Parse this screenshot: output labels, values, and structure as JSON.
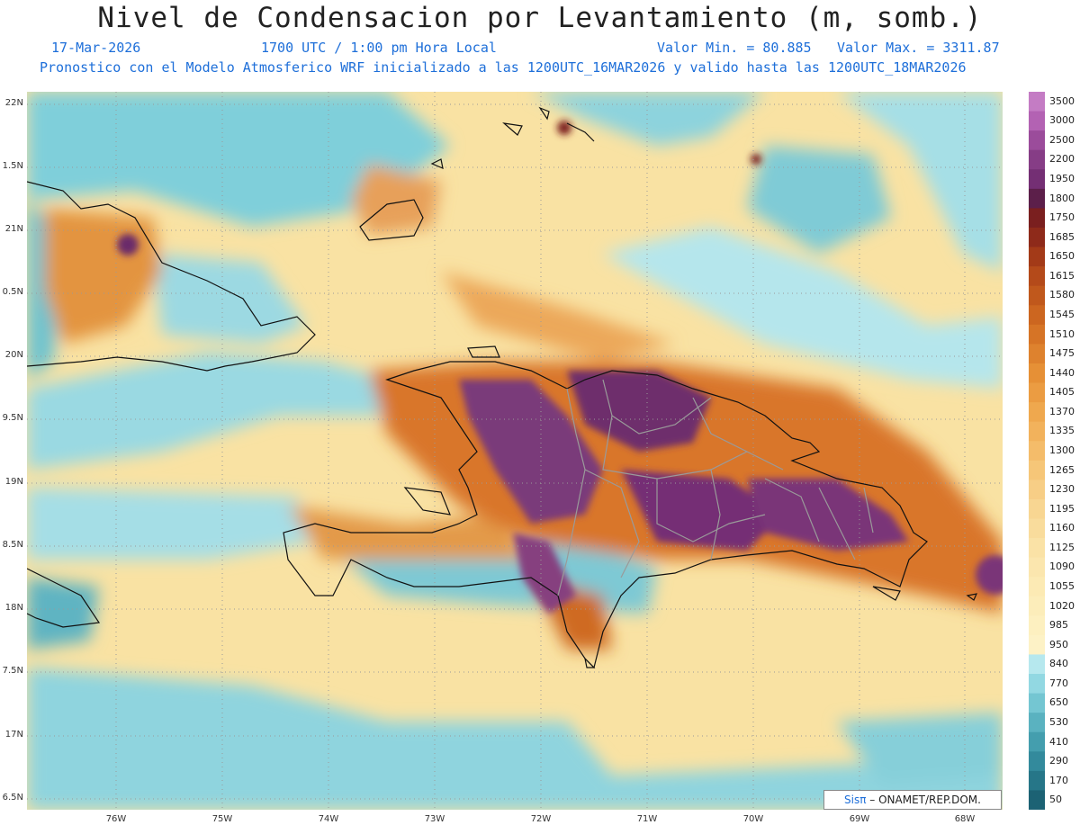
{
  "header": {
    "title": "Nivel de Condensacion por Levantamiento (m, somb.)",
    "date": "17-Mar-2026",
    "time": "1700 UTC / 1:00 pm Hora Local",
    "min_label": "Valor Min. = 80.885",
    "max_label": "Valor Max. = 3311.87",
    "model_info": "Pronostico con el Modelo Atmosferico WRF inicializado a las 1200UTC_16MAR2026 y valido hasta las  1200UTC_18MAR2026"
  },
  "axes": {
    "lat_labels": [
      "22N",
      "1.5N",
      "21N",
      "0.5N",
      "20N",
      "9.5N",
      "19N",
      "8.5N",
      "18N",
      "7.5N",
      "17N",
      "6.5N"
    ],
    "lon_labels": [
      "76W",
      "75W",
      "74W",
      "73W",
      "72W",
      "71W",
      "70W",
      "69W",
      "68W"
    ]
  },
  "legend": {
    "levels": [
      "3500",
      "3000",
      "2500",
      "2200",
      "1950",
      "1800",
      "1750",
      "1685",
      "1650",
      "1615",
      "1580",
      "1545",
      "1510",
      "1475",
      "1440",
      "1405",
      "1370",
      "1335",
      "1300",
      "1265",
      "1230",
      "1195",
      "1160",
      "1125",
      "1090",
      "1055",
      "1020",
      "985",
      "950",
      "840",
      "770",
      "650",
      "530",
      "410",
      "290",
      "170",
      "50"
    ],
    "colors": [
      "#c47cc4",
      "#b362b3",
      "#9b4c9b",
      "#863d86",
      "#742f74",
      "#5c1f4a",
      "#7a1f1f",
      "#8e2a1a",
      "#a33a18",
      "#b44a1a",
      "#c0581c",
      "#cc6620",
      "#d67426",
      "#de822e",
      "#e69036",
      "#eb9c42",
      "#efa84e",
      "#f2b25c",
      "#f4bc6a",
      "#f6c678",
      "#f7ce86",
      "#f8d692",
      "#f9dc9c",
      "#fae2a6",
      "#fbe6ae",
      "#fceab4",
      "#fcedba",
      "#fdf0c0",
      "#fdf2c6",
      "#b6e8ee",
      "#92d8e2",
      "#74c6d2",
      "#5ab2c0",
      "#449eae",
      "#338a9c",
      "#267688",
      "#1c6274"
    ]
  },
  "credit": {
    "logo": "Sisπ",
    "text": " – ONAMET/REP.DOM."
  }
}
